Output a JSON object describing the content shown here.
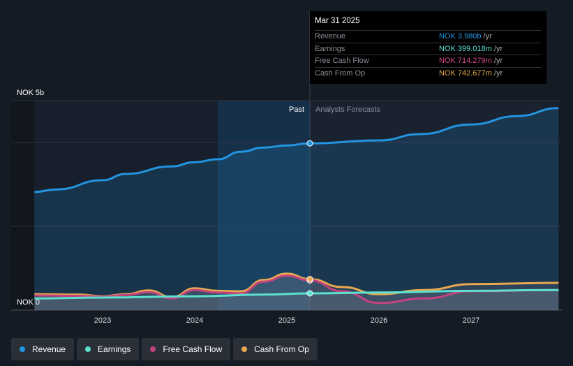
{
  "tooltip": {
    "date": "Mar 31 2025",
    "rows": [
      {
        "label": "Revenue",
        "value": "NOK 3.980b",
        "unit": " /yr",
        "color": "#2394df"
      },
      {
        "label": "Earnings",
        "value": "NOK 399.018m",
        "unit": " /yr",
        "color": "#5ce1d0"
      },
      {
        "label": "Free Cash Flow",
        "value": "NOK 714.279m",
        "unit": " /yr",
        "color": "#d9478a"
      },
      {
        "label": "Cash From Op",
        "value": "NOK 742.677m",
        "unit": " /yr",
        "color": "#e8a94f"
      }
    ]
  },
  "chart_data": {
    "type": "line",
    "ylabel_top": "NOK 5b",
    "ylabel_zero": "NOK 0",
    "ylim": [
      0,
      5
    ],
    "unit": "NOK b",
    "past_label": "Past",
    "forecast_label": "Analysts Forecasts",
    "divider_x": 2025.25,
    "x_ticks": [
      "2023",
      "2024",
      "2025",
      "2026",
      "2027"
    ],
    "series": [
      {
        "name": "Revenue",
        "color": "#2394df",
        "points": [
          [
            2022.26,
            2.82
          ],
          [
            2022.5,
            2.88
          ],
          [
            2023,
            3.1
          ],
          [
            2023.25,
            3.25
          ],
          [
            2023.75,
            3.43
          ],
          [
            2024,
            3.53
          ],
          [
            2024.25,
            3.6
          ],
          [
            2024.5,
            3.78
          ],
          [
            2024.75,
            3.88
          ],
          [
            2025,
            3.93
          ],
          [
            2025.25,
            3.98
          ],
          [
            2026,
            4.05
          ],
          [
            2026.45,
            4.2
          ],
          [
            2027,
            4.43
          ],
          [
            2027.5,
            4.63
          ],
          [
            2027.95,
            4.82
          ]
        ]
      },
      {
        "name": "Earnings",
        "color": "#5ce1d0",
        "points": [
          [
            2022.26,
            0.28
          ],
          [
            2023,
            0.3
          ],
          [
            2024,
            0.33
          ],
          [
            2024.75,
            0.37
          ],
          [
            2025.25,
            0.4
          ],
          [
            2026,
            0.42
          ],
          [
            2027,
            0.46
          ],
          [
            2027.95,
            0.48
          ]
        ]
      },
      {
        "name": "Free Cash Flow",
        "color": "#c3437f",
        "points": [
          [
            2022.26,
            0.35
          ],
          [
            2022.75,
            0.34
          ],
          [
            2023,
            0.32
          ],
          [
            2023.25,
            0.36
          ],
          [
            2023.5,
            0.43
          ],
          [
            2023.75,
            0.28
          ],
          [
            2024,
            0.48
          ],
          [
            2024.25,
            0.42
          ],
          [
            2024.5,
            0.4
          ],
          [
            2024.75,
            0.68
          ],
          [
            2025,
            0.82
          ],
          [
            2025.25,
            0.71
          ],
          [
            2025.6,
            0.45
          ],
          [
            2026,
            0.17
          ],
          [
            2026.5,
            0.28
          ],
          [
            2027,
            0.45
          ],
          [
            2027.95,
            0.48
          ]
        ]
      },
      {
        "name": "Cash From Op",
        "color": "#e8a94f",
        "points": [
          [
            2022.26,
            0.38
          ],
          [
            2022.75,
            0.37
          ],
          [
            2023,
            0.33
          ],
          [
            2023.25,
            0.38
          ],
          [
            2023.5,
            0.47
          ],
          [
            2023.75,
            0.31
          ],
          [
            2024,
            0.52
          ],
          [
            2024.25,
            0.46
          ],
          [
            2024.5,
            0.45
          ],
          [
            2024.75,
            0.72
          ],
          [
            2025,
            0.87
          ],
          [
            2025.25,
            0.74
          ],
          [
            2025.6,
            0.55
          ],
          [
            2026,
            0.38
          ],
          [
            2026.5,
            0.48
          ],
          [
            2027,
            0.62
          ],
          [
            2027.95,
            0.65
          ]
        ]
      }
    ]
  },
  "legend": [
    "Revenue",
    "Earnings",
    "Free Cash Flow",
    "Cash From Op"
  ]
}
